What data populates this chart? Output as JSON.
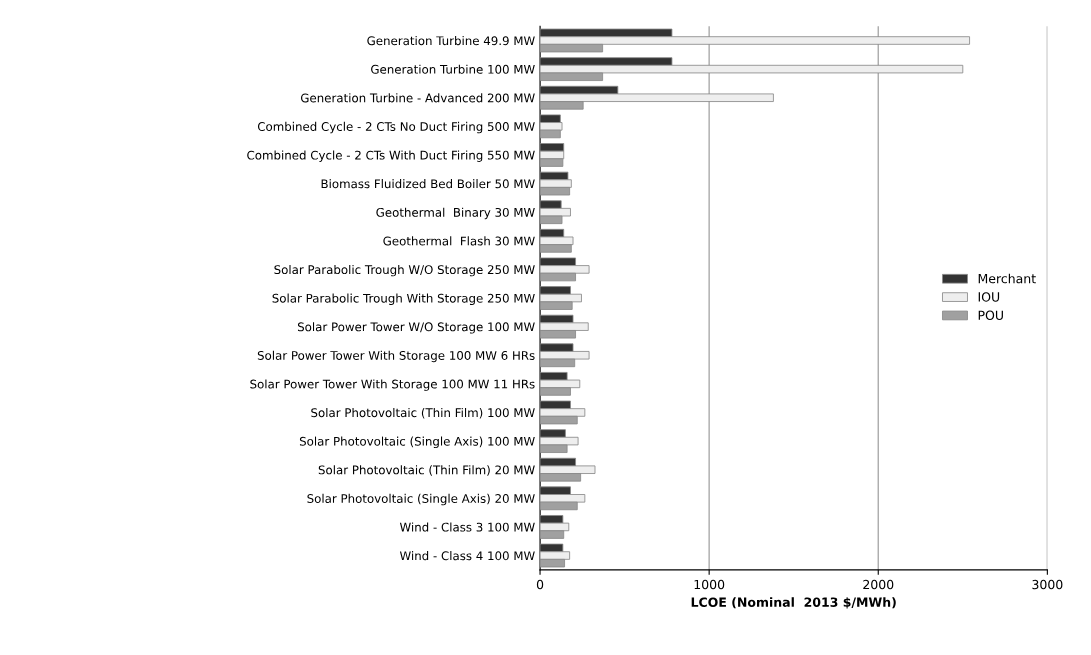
{
  "chart_data": {
    "type": "bar",
    "orientation": "horizontal",
    "xlabel": "LCOE (Nominal  2013 $/MWh)",
    "categories": [
      "Generation Turbine 49.9 MW",
      "Generation Turbine 100 MW",
      "Generation Turbine - Advanced 200 MW",
      "Combined Cycle - 2 CTs No Duct Firing 500 MW",
      "Combined Cycle - 2 CTs With Duct Firing 550 MW",
      "Biomass Fluidized Bed Boiler 50 MW",
      "Geothermal  Binary 30 MW",
      "Geothermal  Flash 30 MW",
      "Solar Parabolic Trough W/O Storage 250 MW",
      "Solar Parabolic Trough With Storage 250 MW",
      "Solar Power Tower W/O Storage 100 MW",
      "Solar Power Tower With Storage 100 MW 6 HRs",
      "Solar Power Tower With Storage 100 MW 11 HRs",
      "Solar Photovoltaic (Thin Film) 100 MW",
      "Solar Photovoltaic (Single Axis) 100 MW",
      "Solar Photovoltaic (Thin Film) 20 MW",
      "Solar Photovoltaic (Single Axis) 20 MW",
      "Wind - Class 3 100 MW",
      "Wind - Class 4 100 MW"
    ],
    "series": [
      {
        "name": "Merchant",
        "color": "#333333",
        "values": [
          780,
          780,
          460,
          120,
          140,
          165,
          125,
          140,
          210,
          180,
          195,
          195,
          160,
          180,
          150,
          210,
          180,
          135,
          135
        ]
      },
      {
        "name": "IOU",
        "color": "#eeeeee",
        "values": [
          2540,
          2500,
          1380,
          130,
          140,
          185,
          180,
          195,
          290,
          245,
          285,
          290,
          235,
          265,
          225,
          325,
          265,
          170,
          175
        ]
      },
      {
        "name": "POU",
        "color": "#a0a0a0",
        "values": [
          370,
          370,
          255,
          120,
          135,
          175,
          130,
          185,
          210,
          190,
          210,
          205,
          180,
          220,
          160,
          240,
          220,
          140,
          145
        ]
      }
    ],
    "xlim": [
      0,
      3000
    ],
    "xticks": [
      0,
      1000,
      2000,
      3000
    ],
    "grid": "x",
    "legend": "right"
  }
}
